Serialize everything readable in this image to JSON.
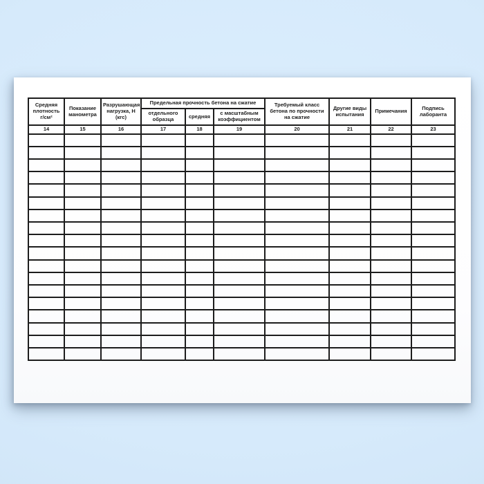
{
  "page": {
    "background_color": "#d6eafb"
  },
  "sheet": {
    "paper_color": "#ffffff"
  },
  "table": {
    "border_color": "#1c1c1c",
    "text_color": "#1c1c1c",
    "span_header": "Предельная прочность бетона на сжатие",
    "columns": [
      {
        "label": "Средняя плотность г/см²",
        "number": "14"
      },
      {
        "label": "Показание манометра",
        "number": "15"
      },
      {
        "label": "Разрушающая нагрузка, Н (кгс)",
        "number": "16"
      },
      {
        "label": "отдельного образца",
        "number": "17"
      },
      {
        "label": "средняя",
        "number": "18"
      },
      {
        "label": "с масштабным коэффициентом",
        "number": "19"
      },
      {
        "label": "Требуемый класс бетона по прочности на сжатие",
        "number": "20"
      },
      {
        "label": "Другие виды испытания",
        "number": "21"
      },
      {
        "label": "Примечания",
        "number": "22"
      },
      {
        "label": "Подпись лаборанта",
        "number": "23"
      }
    ],
    "empty_row_count": 18
  }
}
